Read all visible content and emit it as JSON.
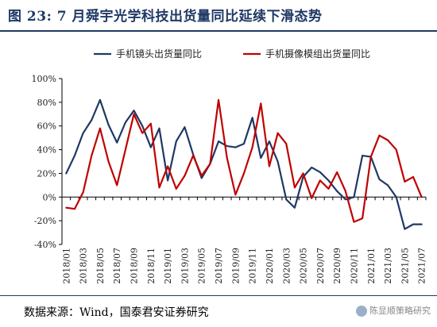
{
  "header": {
    "title": "图 23:  7 月舜宇光学科技出货量同比延续下滑态势"
  },
  "footer": {
    "source": "数据来源：Wind，国泰君安证券研究",
    "watermark": "陈显顺策略研究"
  },
  "chart_data": {
    "type": "line",
    "x": [
      "2018/01",
      "2018/02",
      "2018/03",
      "2018/04",
      "2018/05",
      "2018/06",
      "2018/07",
      "2018/08",
      "2018/09",
      "2018/10",
      "2018/11",
      "2018/12",
      "2019/01",
      "2019/02",
      "2019/03",
      "2019/04",
      "2019/05",
      "2019/06",
      "2019/07",
      "2019/08",
      "2019/09",
      "2019/10",
      "2019/11",
      "2019/12",
      "2020/01",
      "2020/02",
      "2020/03",
      "2020/04",
      "2020/05",
      "2020/06",
      "2020/07",
      "2020/08",
      "2020/09",
      "2020/10",
      "2020/11",
      "2020/12",
      "2021/01",
      "2021/02",
      "2021/03",
      "2021/04",
      "2021/05",
      "2021/06",
      "2021/07"
    ],
    "x_tick_labels": [
      "2018/01",
      "2018/03",
      "2018/05",
      "2018/07",
      "2018/09",
      "2018/11",
      "2019/01",
      "2019/03",
      "2019/05",
      "2019/07",
      "2019/09",
      "2019/11",
      "2020/01",
      "2020/03",
      "2020/05",
      "2020/07",
      "2020/09",
      "2020/11",
      "2021/01",
      "2021/03",
      "2021/05",
      "2021/07"
    ],
    "y_tick_labels": [
      "100%",
      "80%",
      "60%",
      "40%",
      "20%",
      "0%",
      "-20%",
      "-40%"
    ],
    "ylim": [
      -40,
      100
    ],
    "yticks": [
      100,
      80,
      60,
      40,
      20,
      0,
      -20,
      -40
    ],
    "colors": {
      "series1": "#1f3864",
      "series2": "#c00000"
    },
    "grid": false,
    "legend_position": "top",
    "series": [
      {
        "name": "手机镜头出货量同比",
        "values": [
          20,
          35,
          54,
          65,
          82,
          61,
          46,
          63,
          73,
          60,
          42,
          58,
          14,
          47,
          59,
          36,
          16,
          28,
          47,
          43,
          42,
          45,
          67,
          33,
          47,
          30,
          -2,
          -9,
          17,
          25,
          21,
          14,
          5,
          -2,
          0,
          35,
          34,
          15,
          10,
          0,
          -27,
          -23,
          -23
        ]
      },
      {
        "name": "手机摄像模组出货量同比",
        "values": [
          -9,
          -10,
          4,
          35,
          58,
          30,
          10,
          40,
          70,
          54,
          62,
          8,
          26,
          7,
          18,
          35,
          18,
          28,
          82,
          33,
          2,
          20,
          42,
          79,
          26,
          54,
          45,
          8,
          20,
          -1,
          14,
          7,
          21,
          5,
          -21,
          -18,
          34,
          52,
          48,
          40,
          13,
          17,
          0
        ]
      }
    ]
  }
}
